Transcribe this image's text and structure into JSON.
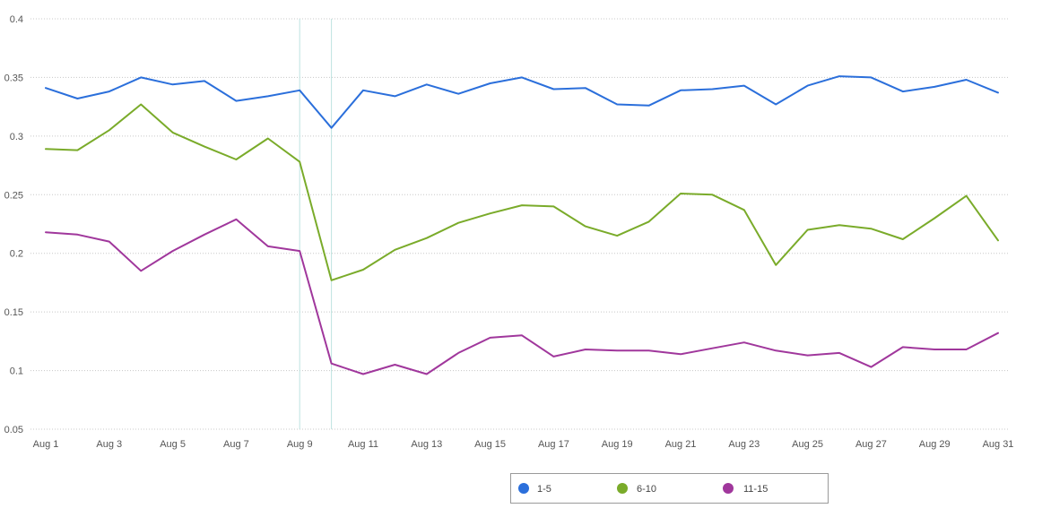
{
  "chart_data": {
    "type": "line",
    "title": "",
    "xlabel": "",
    "ylabel": "",
    "ylim": [
      0.05,
      0.4
    ],
    "y_ticks": [
      "0.05",
      "0.1",
      "0.15",
      "0.2",
      "0.25",
      "0.3",
      "0.35",
      "0.4"
    ],
    "x": [
      "Aug 1",
      "Aug 2",
      "Aug 3",
      "Aug 4",
      "Aug 5",
      "Aug 6",
      "Aug 7",
      "Aug 8",
      "Aug 9",
      "Aug 10",
      "Aug 11",
      "Aug 12",
      "Aug 13",
      "Aug 14",
      "Aug 15",
      "Aug 16",
      "Aug 17",
      "Aug 18",
      "Aug 19",
      "Aug 20",
      "Aug 21",
      "Aug 22",
      "Aug 23",
      "Aug 24",
      "Aug 25",
      "Aug 26",
      "Aug 27",
      "Aug 28",
      "Aug 29",
      "Aug 30",
      "Aug 31"
    ],
    "x_tick_labels": [
      "Aug 1",
      "Aug 3",
      "Aug 5",
      "Aug 7",
      "Aug 9",
      "Aug 11",
      "Aug 13",
      "Aug 15",
      "Aug 17",
      "Aug 19",
      "Aug 21",
      "Aug 23",
      "Aug 25",
      "Aug 27",
      "Aug 29",
      "Aug 31"
    ],
    "highlight_days": [
      "Aug 9",
      "Aug 10"
    ],
    "grid": "horizontal dotted",
    "legend_position": "bottom-center",
    "series": [
      {
        "name": "1-5",
        "color": "#2b6fdb",
        "values": [
          0.341,
          0.332,
          0.338,
          0.35,
          0.344,
          0.347,
          0.33,
          0.334,
          0.339,
          0.307,
          0.339,
          0.334,
          0.344,
          0.336,
          0.345,
          0.35,
          0.34,
          0.341,
          0.327,
          0.326,
          0.339,
          0.34,
          0.343,
          0.327,
          0.343,
          0.351,
          0.35,
          0.338,
          0.342,
          0.348,
          0.337
        ]
      },
      {
        "name": "6-10",
        "color": "#7aab2a",
        "values": [
          0.289,
          0.288,
          0.305,
          0.327,
          0.303,
          0.291,
          0.28,
          0.298,
          0.278,
          0.177,
          0.186,
          0.203,
          0.213,
          0.226,
          0.234,
          0.241,
          0.24,
          0.223,
          0.215,
          0.227,
          0.251,
          0.25,
          0.237,
          0.19,
          0.22,
          0.224,
          0.221,
          0.212,
          0.23,
          0.249,
          0.211
        ]
      },
      {
        "name": "11-15",
        "color": "#a0379c",
        "values": [
          0.218,
          0.216,
          0.21,
          0.185,
          0.202,
          0.216,
          0.229,
          0.206,
          0.202,
          0.106,
          0.097,
          0.105,
          0.097,
          0.115,
          0.128,
          0.13,
          0.112,
          0.118,
          0.117,
          0.117,
          0.114,
          0.119,
          0.124,
          0.117,
          0.113,
          0.115,
          0.103,
          0.12,
          0.118,
          0.118,
          0.132
        ]
      }
    ]
  }
}
